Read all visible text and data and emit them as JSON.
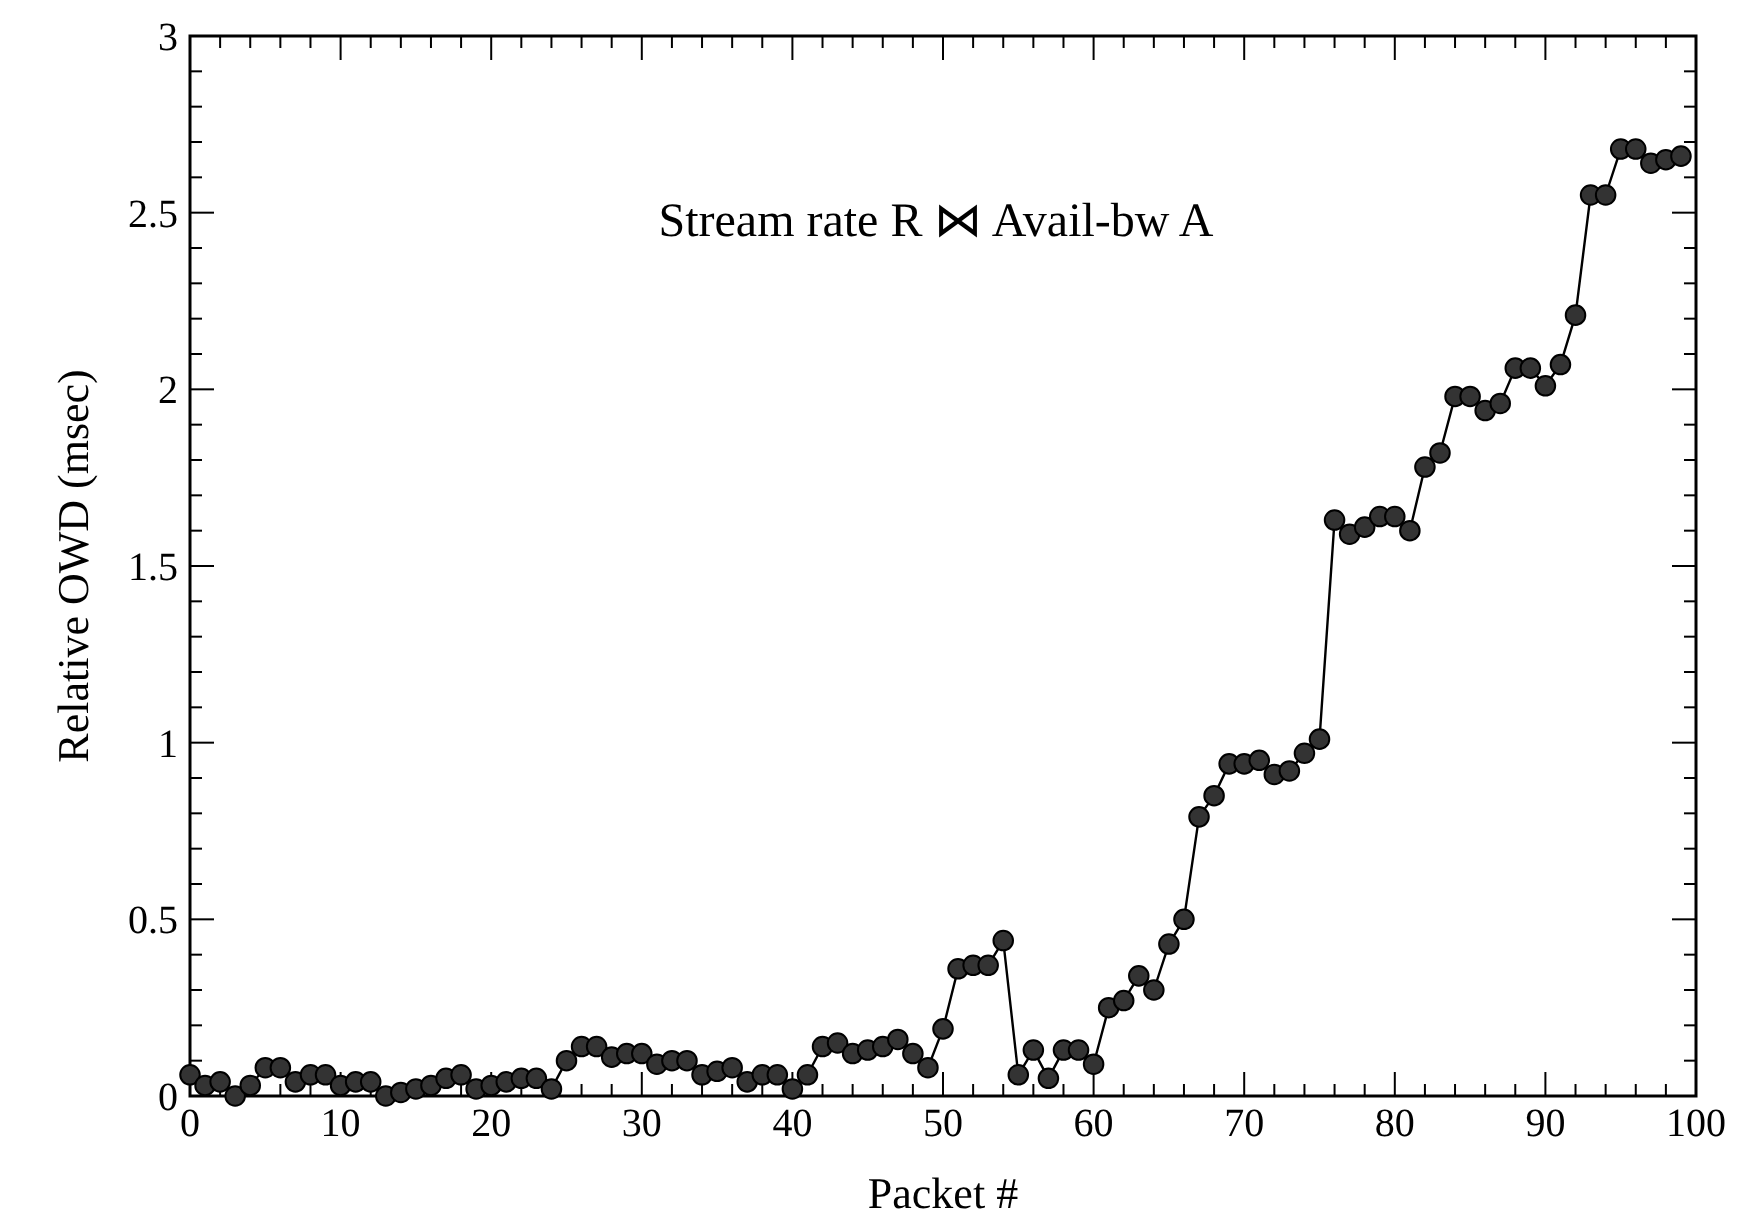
{
  "chart_data": {
    "type": "line",
    "xlabel": "Packet #",
    "ylabel": "Relative OWD (msec)",
    "annotations": [
      "Stream rate R ⋈ Avail-bw A"
    ],
    "x": [
      0,
      1,
      2,
      3,
      4,
      5,
      6,
      7,
      8,
      9,
      10,
      11,
      12,
      13,
      14,
      15,
      16,
      17,
      18,
      19,
      20,
      21,
      22,
      23,
      24,
      25,
      26,
      27,
      28,
      29,
      30,
      31,
      32,
      33,
      34,
      35,
      36,
      37,
      38,
      39,
      40,
      41,
      42,
      43,
      44,
      45,
      46,
      47,
      48,
      49,
      50,
      51,
      52,
      53,
      54,
      55,
      56,
      57,
      58,
      59,
      60,
      61,
      62,
      63,
      64,
      65,
      66,
      67,
      68,
      69,
      70,
      71,
      72,
      73,
      74,
      75,
      76,
      77,
      78,
      79,
      80,
      81,
      82,
      83,
      84,
      85,
      86,
      87,
      88,
      89,
      90,
      91,
      92,
      93,
      94,
      95,
      96,
      97,
      98,
      99
    ],
    "series": [
      {
        "color": "#000000",
        "values": [
          0.06,
          0.03,
          0.04,
          0.0,
          0.03,
          0.08,
          0.08,
          0.04,
          0.06,
          0.06,
          0.03,
          0.04,
          0.04,
          0.0,
          0.01,
          0.02,
          0.03,
          0.05,
          0.06,
          0.02,
          0.03,
          0.04,
          0.05,
          0.05,
          0.02,
          0.1,
          0.14,
          0.14,
          0.11,
          0.12,
          0.12,
          0.09,
          0.1,
          0.1,
          0.06,
          0.07,
          0.08,
          0.04,
          0.06,
          0.06,
          0.02,
          0.06,
          0.14,
          0.15,
          0.12,
          0.13,
          0.14,
          0.16,
          0.12,
          0.08,
          0.19,
          0.36,
          0.37,
          0.37,
          0.44,
          0.06,
          0.13,
          0.05,
          0.13,
          0.13,
          0.09,
          0.25,
          0.27,
          0.34,
          0.3,
          0.43,
          0.5,
          0.79,
          0.85,
          0.94,
          0.94,
          0.95,
          0.91,
          0.92,
          0.97,
          1.01,
          1.63,
          1.59,
          1.61,
          1.64,
          1.64,
          1.6,
          1.78,
          1.82,
          1.98,
          1.98,
          1.94,
          1.96,
          2.06,
          2.06,
          2.01,
          2.07,
          2.21,
          2.55,
          2.55,
          2.68,
          2.68,
          2.64,
          2.65,
          2.66
        ]
      }
    ],
    "xlim": [
      0,
      100
    ],
    "ylim": [
      0,
      3
    ],
    "xticks": [
      0,
      {
        "value": 2,
        "label": null
      },
      {
        "value": 4,
        "label": null
      },
      {
        "value": 6,
        "label": null
      },
      {
        "value": 8,
        "label": null
      },
      10,
      {
        "value": 12,
        "label": null
      },
      {
        "value": 14,
        "label": null
      },
      {
        "value": 16,
        "label": null
      },
      {
        "value": 18,
        "label": null
      },
      20,
      {
        "value": 22,
        "label": null
      },
      {
        "value": 24,
        "label": null
      },
      {
        "value": 26,
        "label": null
      },
      {
        "value": 28,
        "label": null
      },
      30,
      {
        "value": 32,
        "label": null
      },
      {
        "value": 34,
        "label": null
      },
      {
        "value": 36,
        "label": null
      },
      {
        "value": 38,
        "label": null
      },
      40,
      {
        "value": 42,
        "label": null
      },
      {
        "value": 44,
        "label": null
      },
      {
        "value": 46,
        "label": null
      },
      {
        "value": 48,
        "label": null
      },
      50,
      {
        "value": 52,
        "label": null
      },
      {
        "value": 54,
        "label": null
      },
      {
        "value": 56,
        "label": null
      },
      {
        "value": 58,
        "label": null
      },
      60,
      {
        "value": 62,
        "label": null
      },
      {
        "value": 64,
        "label": null
      },
      {
        "value": 66,
        "label": null
      },
      {
        "value": 68,
        "label": null
      },
      70,
      {
        "value": 72,
        "label": null
      },
      {
        "value": 74,
        "label": null
      },
      {
        "value": 76,
        "label": null
      },
      {
        "value": 78,
        "label": null
      },
      80,
      {
        "value": 82,
        "label": null
      },
      {
        "value": 84,
        "label": null
      },
      {
        "value": 86,
        "label": null
      },
      {
        "value": 88,
        "label": null
      },
      90,
      {
        "value": 92,
        "label": null
      },
      {
        "value": 94,
        "label": null
      },
      {
        "value": 96,
        "label": null
      },
      {
        "value": 98,
        "label": null
      },
      100
    ],
    "yticks": [
      0,
      {
        "value": 0.1,
        "label": null
      },
      {
        "value": 0.2,
        "label": null
      },
      {
        "value": 0.3,
        "label": null
      },
      {
        "value": 0.4,
        "label": null
      },
      0.5,
      {
        "value": 0.6,
        "label": null
      },
      {
        "value": 0.7,
        "label": null
      },
      {
        "value": 0.8,
        "label": null
      },
      {
        "value": 0.9,
        "label": null
      },
      1,
      {
        "value": 1.1,
        "label": null
      },
      {
        "value": 1.2,
        "label": null
      },
      {
        "value": 1.3,
        "label": null
      },
      {
        "value": 1.4,
        "label": null
      },
      1.5,
      {
        "value": 1.6,
        "label": null
      },
      {
        "value": 1.7,
        "label": null
      },
      {
        "value": 1.8,
        "label": null
      },
      {
        "value": 1.9,
        "label": null
      },
      2,
      {
        "value": 2.1,
        "label": null
      },
      {
        "value": 2.2,
        "label": null
      },
      {
        "value": 2.3,
        "label": null
      },
      {
        "value": 2.4,
        "label": null
      },
      2.5,
      {
        "value": 2.6,
        "label": null
      },
      {
        "value": 2.7,
        "label": null
      },
      {
        "value": 2.8,
        "label": null
      },
      {
        "value": 2.9,
        "label": null
      },
      3
    ],
    "grid": false,
    "marker": "circle",
    "line_style": "solid"
  }
}
